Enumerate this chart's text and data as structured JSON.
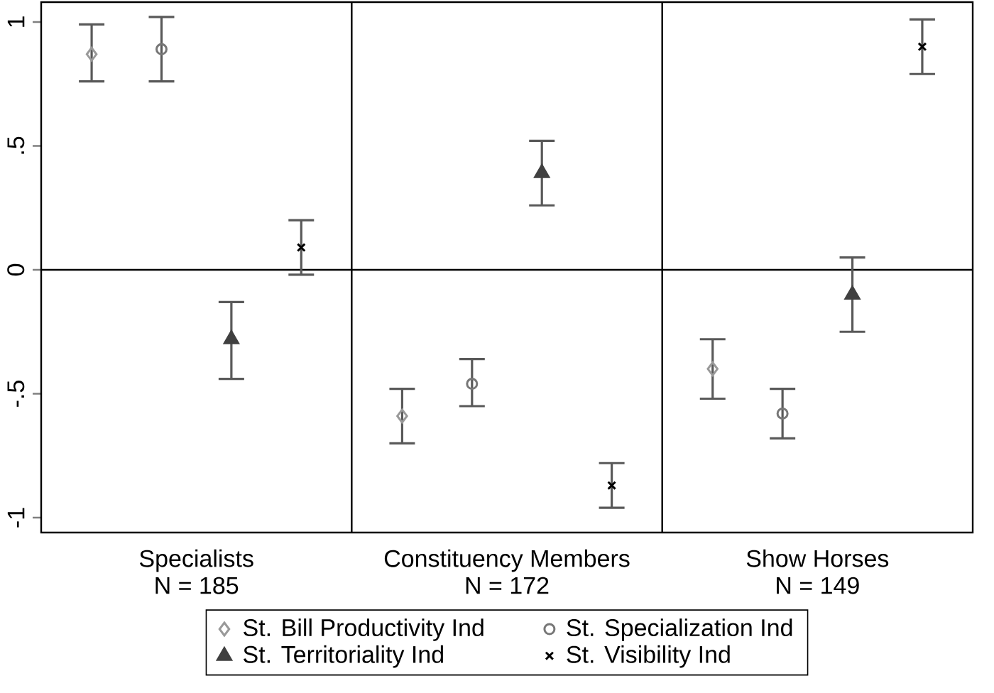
{
  "chart_data": {
    "type": "scatter",
    "categories": [
      "Specialists",
      "Constituency Members",
      "Show Horses"
    ],
    "annotations": [
      "N = 185",
      "N = 172",
      "N = 149"
    ],
    "series": [
      {
        "name": "St. Bill Productivity Ind",
        "color": "#999999",
        "marker": "diamond",
        "values": [
          0.87,
          -0.59,
          -0.4
        ],
        "errors": [
          [
            0.76,
            0.99
          ],
          [
            -0.7,
            -0.48
          ],
          [
            -0.52,
            -0.28
          ]
        ]
      },
      {
        "name": "St. Specialization Ind",
        "color": "#777777",
        "marker": "circle",
        "values": [
          0.89,
          -0.46,
          -0.58
        ],
        "errors": [
          [
            0.76,
            1.02
          ],
          [
            -0.55,
            -0.36
          ],
          [
            -0.68,
            -0.48
          ]
        ]
      },
      {
        "name": "St. Territoriality Ind",
        "color": "#404040",
        "marker": "triangle",
        "values": [
          -0.28,
          0.39,
          -0.1
        ],
        "errors": [
          [
            -0.44,
            -0.13
          ],
          [
            0.26,
            0.52
          ],
          [
            -0.25,
            0.05
          ]
        ]
      },
      {
        "name": "St. Visibility Ind",
        "color": "#000000",
        "marker": "cross",
        "values": [
          0.09,
          -0.87,
          0.9
        ],
        "errors": [
          [
            -0.02,
            0.2
          ],
          [
            -0.96,
            -0.78
          ],
          [
            0.79,
            1.01
          ]
        ]
      }
    ],
    "ylim": [
      -1.06,
      1.08
    ],
    "yticks": [
      -1,
      {
        "value": -0.5,
        "label": "-.5"
      },
      0,
      {
        "value": 0.5,
        "label": ".5"
      },
      1
    ],
    "ref_lines": [
      {
        "axis": "y",
        "value": 0
      }
    ],
    "legend": "bottom"
  }
}
